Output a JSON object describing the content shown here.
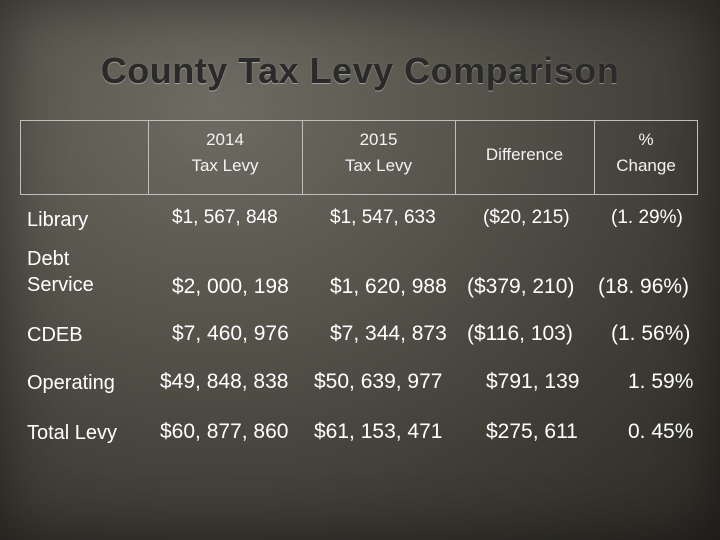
{
  "slide": {
    "title": "County Tax Levy Comparison"
  },
  "table": {
    "headers": {
      "col1_line1": "2014",
      "col1_line2": "Tax Levy",
      "col2_line1": "2015",
      "col2_line2": "Tax Levy",
      "col3": "Difference",
      "col4_line1": "%",
      "col4_line2": "Change"
    },
    "rows": [
      {
        "label": "Library",
        "levy_2014": "$1, 567, 848",
        "levy_2015": "$1, 547, 633",
        "difference": "($20, 215)",
        "pct_change": "(1. 29%)"
      },
      {
        "label_line1": "Debt",
        "label_line2": "Service",
        "levy_2014": "$2, 000, 198",
        "levy_2015": "$1, 620, 988",
        "difference": "($379, 210)",
        "pct_change": "(18. 96%)"
      },
      {
        "label": "CDEB",
        "levy_2014": "$7, 460, 976",
        "levy_2015": "$7, 344, 873",
        "difference": "($116, 103)",
        "pct_change": "(1. 56%)"
      },
      {
        "label": "Operating",
        "levy_2014": "$49, 848, 838",
        "levy_2015": "$50, 639, 977",
        "difference": "$791, 139",
        "pct_change": "1. 59%"
      },
      {
        "label": "Total Levy",
        "levy_2014": "$60, 877, 860",
        "levy_2015": "$61, 153, 471",
        "difference": "$275, 611",
        "pct_change": "0. 45%"
      }
    ]
  }
}
